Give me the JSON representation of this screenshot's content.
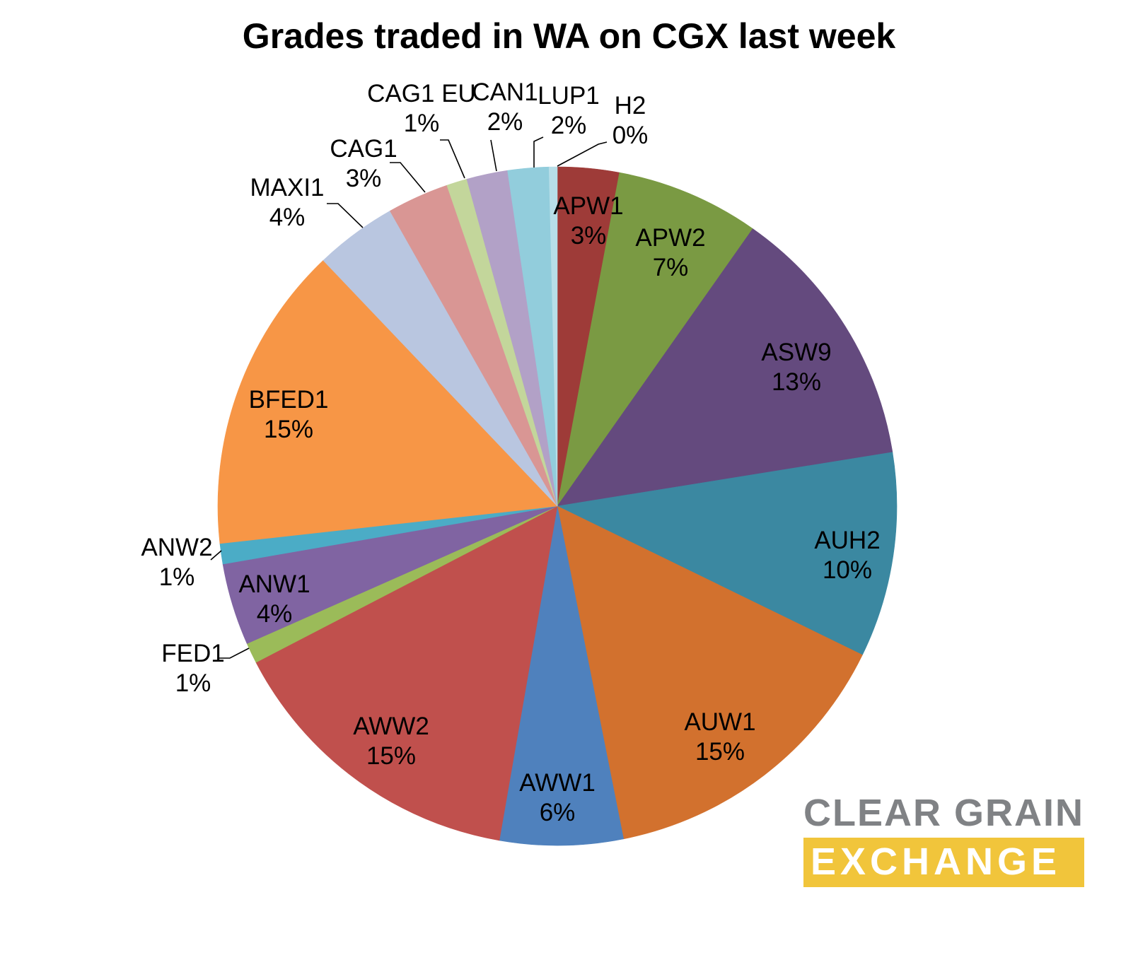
{
  "title": "Grades traded in WA on CGX last week",
  "chart_data": {
    "type": "pie",
    "title": "Grades traded in WA on CGX last week",
    "unit": "percent of trades",
    "legend": "none (labels on slices with leader lines for small slices)",
    "slices": [
      {
        "label": "APW1",
        "pct_label": "3%",
        "value": 3,
        "color": "#9E3B38"
      },
      {
        "label": "APW2",
        "pct_label": "7%",
        "value": 7,
        "color": "#7A9A43"
      },
      {
        "label": "ASW9",
        "pct_label": "13%",
        "value": 13,
        "color": "#644A7E"
      },
      {
        "label": "AUH2",
        "pct_label": "10%",
        "value": 10,
        "color": "#3B88A1"
      },
      {
        "label": "AUW1",
        "pct_label": "15%",
        "value": 15,
        "color": "#D2712E"
      },
      {
        "label": "AWW1",
        "pct_label": "6%",
        "value": 6,
        "color": "#4F81BD"
      },
      {
        "label": "AWW2",
        "pct_label": "15%",
        "value": 15,
        "color": "#C0504D"
      },
      {
        "label": "FED1",
        "pct_label": "1%",
        "value": 1,
        "color": "#9BBB59"
      },
      {
        "label": "ANW1",
        "pct_label": "4%",
        "value": 4,
        "color": "#8064A2"
      },
      {
        "label": "ANW2",
        "pct_label": "1%",
        "value": 1,
        "color": "#4BACC6"
      },
      {
        "label": "BFED1",
        "pct_label": "15%",
        "value": 15,
        "color": "#F79646"
      },
      {
        "label": "MAXI1",
        "pct_label": "4%",
        "value": 4,
        "color": "#B9C6E0"
      },
      {
        "label": "CAG1",
        "pct_label": "3%",
        "value": 3,
        "color": "#D99694"
      },
      {
        "label": "CAG1 EU",
        "pct_label": "1%",
        "value": 1,
        "color": "#C3D69B"
      },
      {
        "label": "CAN1",
        "pct_label": "2%",
        "value": 2,
        "color": "#B2A1C7"
      },
      {
        "label": "LUP1",
        "pct_label": "2%",
        "value": 2,
        "color": "#92CDDC"
      },
      {
        "label": "H2",
        "pct_label": "0%",
        "value": 0.4,
        "color": "#B7DEE8"
      }
    ]
  },
  "logo": {
    "line1": "CLEAR GRAIN",
    "line2": "EXCHANGE",
    "bar_color": "#F1C53B",
    "line1_color": "#808285",
    "line2_color": "#FFFFFF"
  }
}
